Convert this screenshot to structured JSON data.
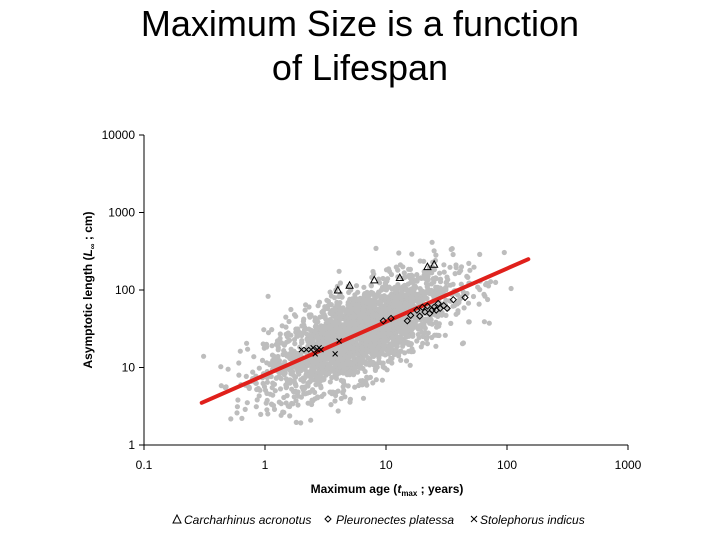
{
  "page": {
    "title_line1": "Maximum Size is a function",
    "title_line2": "of Lifespan"
  },
  "chart_data": {
    "type": "scatter",
    "xscale": "log",
    "yscale": "log",
    "xlim": [
      0.1,
      1000
    ],
    "ylim": [
      1,
      10000
    ],
    "x_ticks": [
      "0.1",
      "1",
      "10",
      "100",
      "1000"
    ],
    "y_ticks": [
      "1",
      "10",
      "100",
      "1000",
      "10000"
    ],
    "xlabel_pre": "Maximum age (",
    "xlabel_t": "t",
    "xlabel_sub": "max",
    "xlabel_post": "; years)",
    "ylabel_pre": "Asymptotic length (",
    "ylabel_l": "L",
    "ylabel_sub": "∞",
    "ylabel_post": "; cm)",
    "colors": {
      "cloud": "#bdbdbd",
      "fit": "#e0201b",
      "markers": "#000000"
    },
    "background_cloud": {
      "description_count": 2500,
      "fit_center": true
    },
    "fit_line": {
      "name": "regression",
      "x": [
        0.3,
        150
      ],
      "y": [
        3.5,
        250
      ]
    },
    "series": [
      {
        "name": "Carcharhinus acronotus",
        "marker": "triangle",
        "x": [
          4.0,
          5.0,
          8.0,
          13.0,
          22.0,
          25.0
        ],
        "y": [
          100,
          115,
          135,
          145,
          200,
          215
        ]
      },
      {
        "name": "Pleuronectes platessa",
        "marker": "diamond",
        "x": [
          9.5,
          11.0,
          15.0,
          16.0,
          18.0,
          19.0,
          20.0,
          21.0,
          22.0,
          23.0,
          24.0,
          25.0,
          26.0,
          27.0,
          28.0,
          30.0,
          32.0,
          36.0,
          45.0
        ],
        "y": [
          40,
          43,
          40,
          47,
          55,
          46,
          60,
          52,
          62,
          50,
          55,
          60,
          55,
          67,
          58,
          63,
          58,
          75,
          80
        ]
      },
      {
        "name": "Stolephorus indicus",
        "marker": "x",
        "x": [
          2.0,
          2.2,
          2.4,
          2.5,
          2.6,
          2.7,
          2.8,
          2.9,
          3.8,
          4.1
        ],
        "y": [
          17,
          17,
          17,
          18,
          15,
          17,
          18,
          17,
          15,
          22
        ]
      }
    ],
    "legend": {
      "placement": "bottom"
    }
  }
}
